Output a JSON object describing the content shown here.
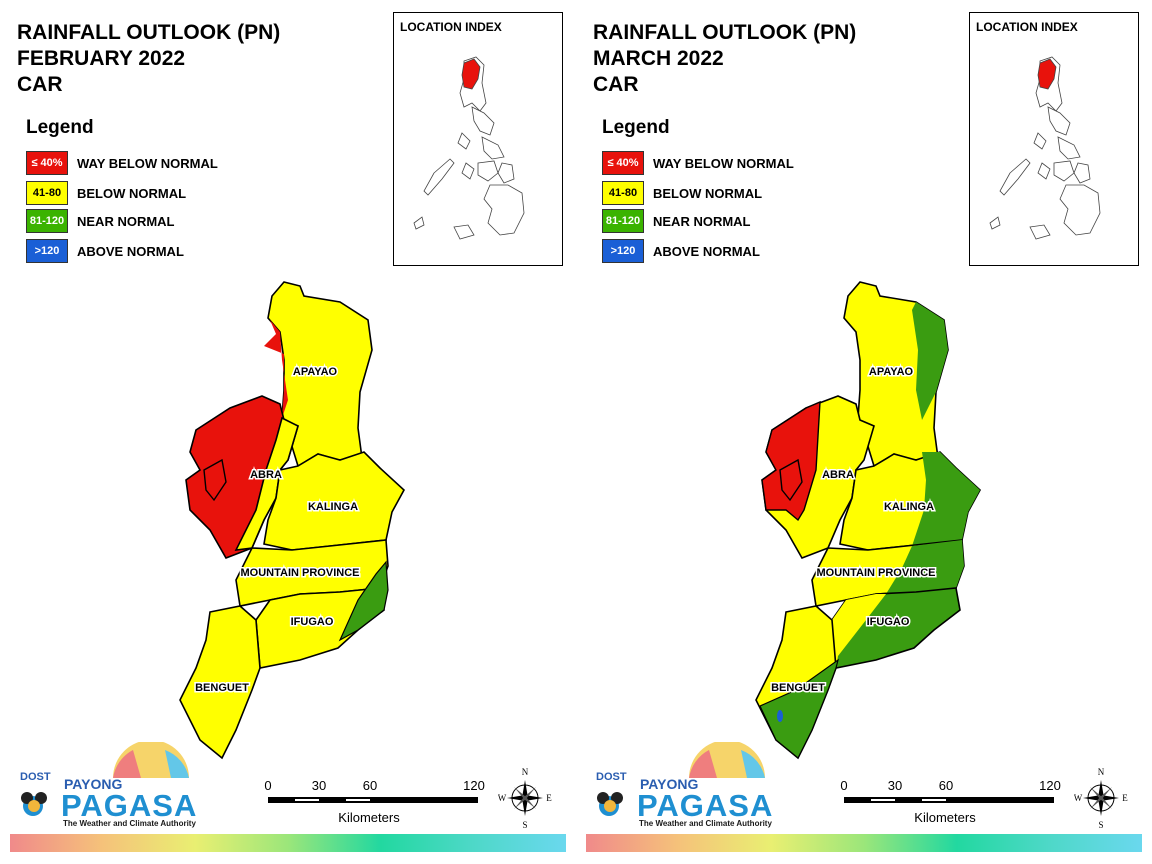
{
  "panels": [
    {
      "title_line1": "RAINFALL OUTLOOK (PN)",
      "title_line2": "FEBRUARY 2022",
      "title_line3": "CAR",
      "legend_title": "Legend",
      "legend": [
        {
          "code": "≤ 40%",
          "label": "WAY BELOW NORMAL",
          "color": "#e8120c",
          "text_color": "#ffffff"
        },
        {
          "code": "41-80",
          "label": "BELOW NORMAL",
          "color": "#ffff00",
          "text_color": "#000000"
        },
        {
          "code": "81-120",
          "label": "NEAR NORMAL",
          "color": "#3bb300",
          "text_color": "#ffffff"
        },
        {
          "code": ">120",
          "label": "ABOVE NORMAL",
          "color": "#1a5fd6",
          "text_color": "#ffffff"
        }
      ],
      "location_index_label": "LOCATION INDEX",
      "regions": {
        "apayao": "APAYAO",
        "abra": "ABRA",
        "kalinga": "KALINGA",
        "mountain_province": "MOUNTAIN PROVINCE",
        "ifugao": "IFUGAO",
        "benguet": "BENGUET"
      },
      "scale": {
        "ticks": [
          "0",
          "30",
          "60",
          "120"
        ],
        "unit": "Kilometers"
      },
      "compass": {
        "n": "N",
        "s": "S",
        "e": "E",
        "w": "W"
      },
      "logo": {
        "dost": "DOST",
        "payong": "PAYONG",
        "pagasa": "PAGASA",
        "tagline": "The Weather and Climate Authority"
      }
    },
    {
      "title_line1": "RAINFALL OUTLOOK (PN)",
      "title_line2": "MARCH 2022",
      "title_line3": "CAR",
      "legend_title": "Legend",
      "legend": [
        {
          "code": "≤ 40%",
          "label": "WAY BELOW NORMAL",
          "color": "#e8120c",
          "text_color": "#ffffff"
        },
        {
          "code": "41-80",
          "label": "BELOW NORMAL",
          "color": "#ffff00",
          "text_color": "#000000"
        },
        {
          "code": "81-120",
          "label": "NEAR NORMAL",
          "color": "#3bb300",
          "text_color": "#ffffff"
        },
        {
          "code": ">120",
          "label": "ABOVE NORMAL",
          "color": "#1a5fd6",
          "text_color": "#ffffff"
        }
      ],
      "location_index_label": "LOCATION INDEX",
      "regions": {
        "apayao": "APAYAO",
        "abra": "ABRA",
        "kalinga": "KALINGA",
        "mountain_province": "MOUNTAIN PROVINCE",
        "ifugao": "IFUGAO",
        "benguet": "BENGUET"
      },
      "scale": {
        "ticks": [
          "0",
          "30",
          "60",
          "120"
        ],
        "unit": "Kilometers"
      },
      "compass": {
        "n": "N",
        "s": "S",
        "e": "E",
        "w": "W"
      },
      "logo": {
        "dost": "DOST",
        "payong": "PAYONG",
        "pagasa": "PAGASA",
        "tagline": "The Weather and Climate Authority"
      }
    }
  ]
}
